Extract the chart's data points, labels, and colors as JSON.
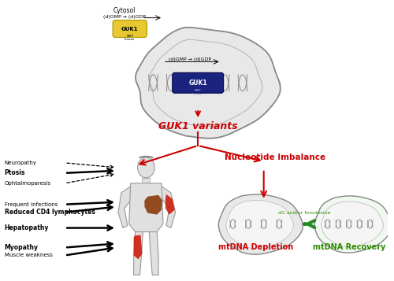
{
  "bg_color": "#ffffff",
  "cytosol_label": "Cytosol",
  "cytosol_text": "(d)GMP → (d)GDP",
  "guk1_label": "GUK1",
  "mito_inner_text": "(d)GMP → (d)GDP",
  "guk1_variants": "GUK1 variants",
  "nucleotide": "Nucleotide Imbalance",
  "mtdna_depletion": "mtDNA Depletion",
  "mtdna_recovery": "mtDNA Recovery",
  "dg_forodesine": "dG and/or forodesine",
  "red": "#cc0000",
  "green": "#228B22",
  "dark_green": "#2d8b00",
  "yellow_box": "#E8C830",
  "dark_blue": "#1a237e",
  "mito_fill": "#e8e8e8",
  "mito_edge": "#888888",
  "body_fill": "#e0e0e0",
  "body_edge": "#999999",
  "liver_color": "#8B3A0A",
  "muscle_color": "#cc1100"
}
